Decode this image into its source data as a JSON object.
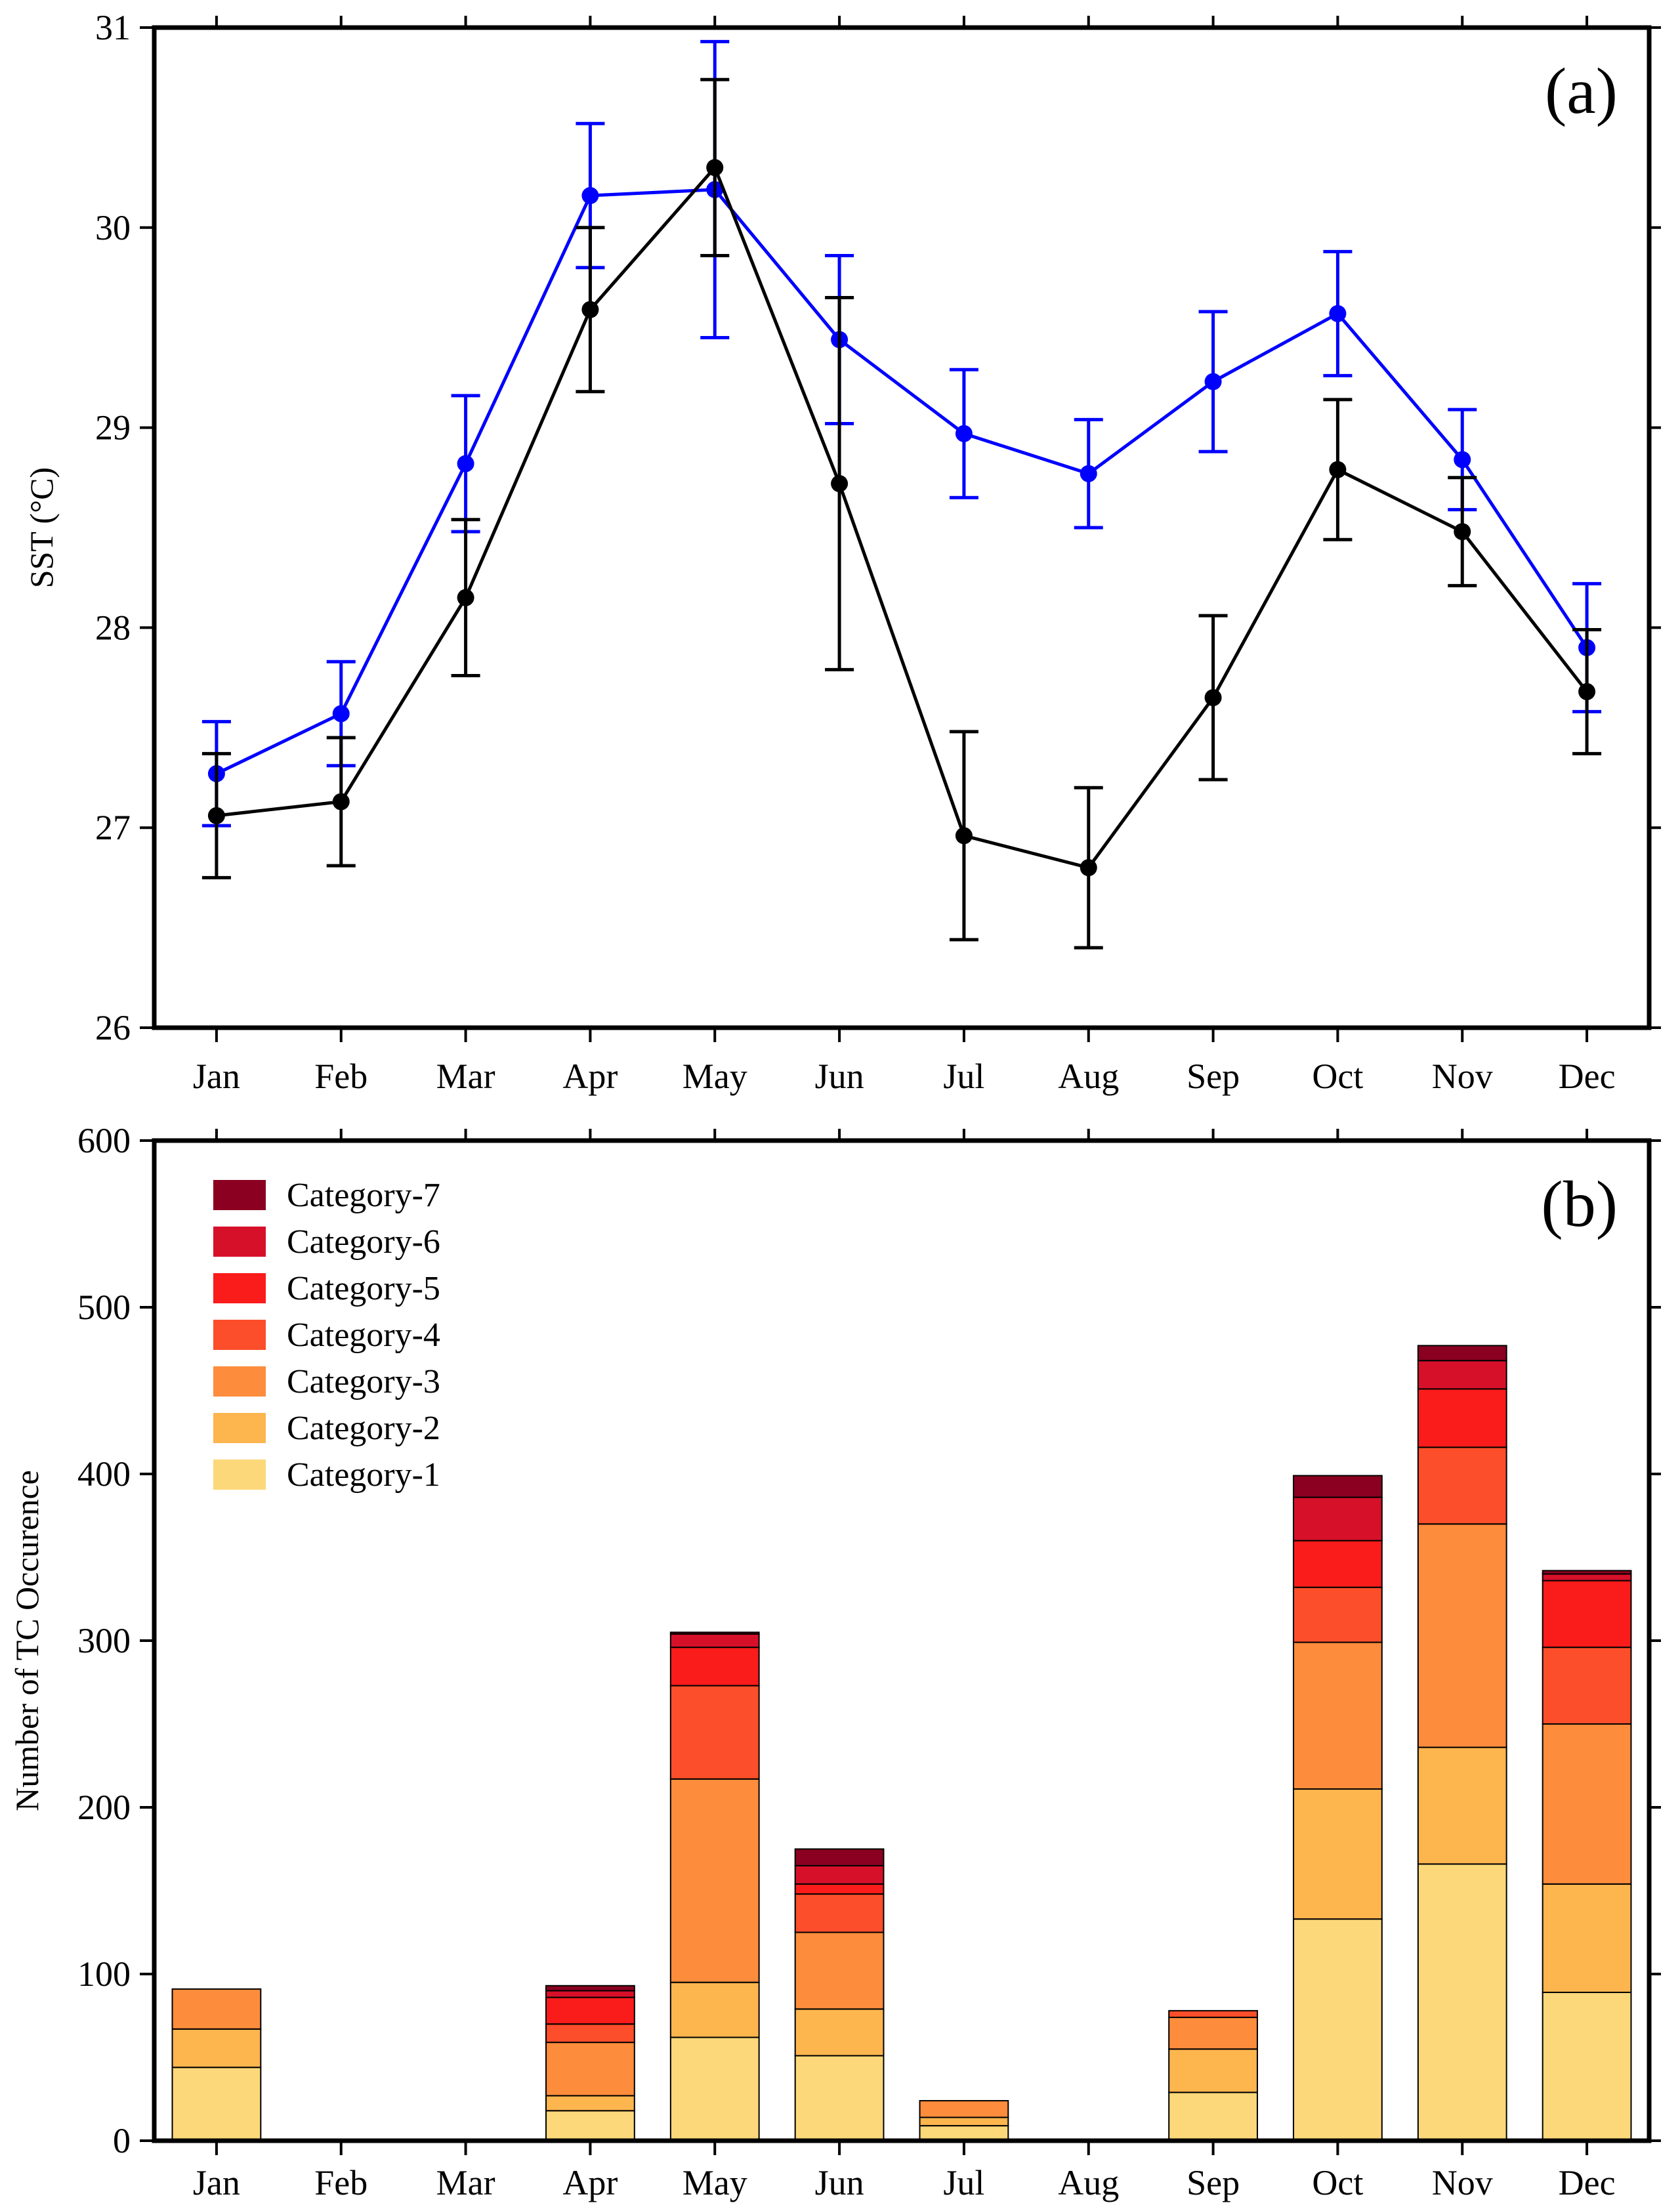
{
  "chart_data": [
    {
      "panel": "(a)",
      "type": "line",
      "ylabel": "SST (°C)",
      "xlabel": "",
      "ylim": [
        26,
        31
      ],
      "yticks": [
        26,
        27,
        28,
        29,
        30,
        31
      ],
      "categories": [
        "Jan",
        "Feb",
        "Mar",
        "Apr",
        "May",
        "Jun",
        "Jul",
        "Aug",
        "Sep",
        "Oct",
        "Nov",
        "Dec"
      ],
      "grid": false,
      "series": [
        {
          "color": "#0000ff",
          "values": [
            27.27,
            27.57,
            28.82,
            30.16,
            30.19,
            29.44,
            28.97,
            28.77,
            29.23,
            29.57,
            28.84,
            27.9
          ],
          "error": [
            0.26,
            0.26,
            0.34,
            0.36,
            0.74,
            0.42,
            0.32,
            0.27,
            0.35,
            0.31,
            0.25,
            0.32
          ]
        },
        {
          "color": "#000000",
          "values": [
            27.06,
            27.13,
            28.15,
            29.59,
            30.3,
            28.72,
            26.96,
            26.8,
            27.65,
            28.79,
            28.48,
            27.68
          ],
          "error": [
            0.31,
            0.32,
            0.39,
            0.41,
            0.44,
            0.93,
            0.52,
            0.4,
            0.41,
            0.35,
            0.27,
            0.31
          ]
        }
      ]
    },
    {
      "panel": "(b)",
      "type": "bar",
      "stacked": true,
      "ylabel": "Number of TC Occurence",
      "xlabel": "",
      "ylim": [
        0,
        600
      ],
      "yticks": [
        0,
        100,
        200,
        300,
        400,
        500,
        600
      ],
      "categories": [
        "Jan",
        "Feb",
        "Mar",
        "Apr",
        "May",
        "Jun",
        "Jul",
        "Aug",
        "Sep",
        "Oct",
        "Nov",
        "Dec"
      ],
      "legend_position": "top-left",
      "grid": false,
      "series": [
        {
          "name": "Category-1",
          "color": "#fdd87a",
          "values": [
            44,
            0,
            0,
            18,
            62,
            51,
            9,
            0,
            29,
            133,
            166,
            89
          ]
        },
        {
          "name": "Category-2",
          "color": "#fdb54e",
          "values": [
            23,
            0,
            0,
            9,
            33,
            28,
            5,
            0,
            26,
            78,
            70,
            65
          ]
        },
        {
          "name": "Category-3",
          "color": "#fd8c3c",
          "values": [
            24,
            0,
            0,
            32,
            122,
            46,
            10,
            0,
            19,
            88,
            134,
            96
          ]
        },
        {
          "name": "Category-4",
          "color": "#fc4e2a",
          "values": [
            0,
            0,
            0,
            11,
            56,
            23,
            0,
            0,
            4,
            33,
            46,
            46
          ]
        },
        {
          "name": "Category-5",
          "color": "#fa1b1b",
          "values": [
            0,
            0,
            0,
            16,
            23,
            6,
            0,
            0,
            0,
            28,
            35,
            40
          ]
        },
        {
          "name": "Category-6",
          "color": "#d7102a",
          "values": [
            0,
            0,
            0,
            4,
            8,
            11,
            0,
            0,
            0,
            26,
            17,
            4
          ]
        },
        {
          "name": "Category-7",
          "color": "#8b0020",
          "values": [
            0,
            0,
            0,
            3,
            1,
            10,
            0,
            0,
            0,
            13,
            9,
            2
          ]
        }
      ]
    }
  ]
}
